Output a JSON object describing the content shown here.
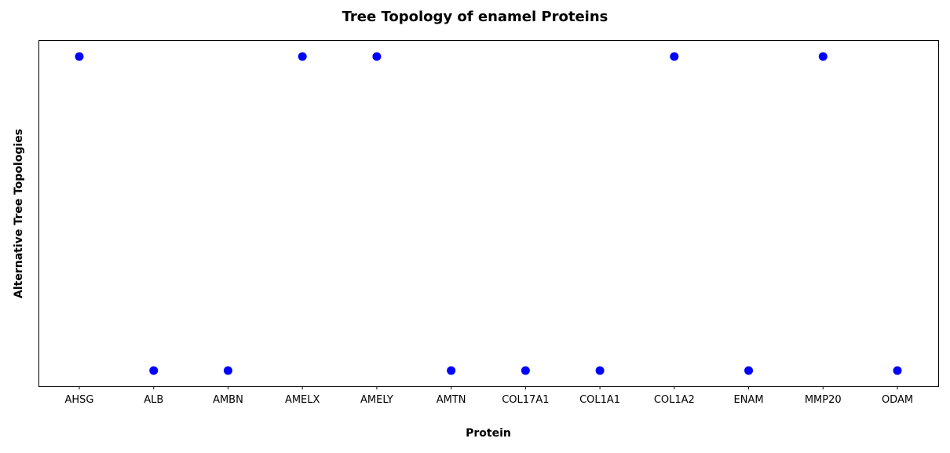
{
  "chart_data": {
    "type": "scatter",
    "title": "Tree Topology of enamel Proteins",
    "xlabel": "Protein",
    "ylabel": "Alternative Tree Topologies",
    "categories": [
      "AHSG",
      "ALB",
      "AMBN",
      "AMELX",
      "AMELY",
      "AMTN",
      "COL17A1",
      "COL1A1",
      "COL1A2",
      "ENAM",
      "MMP20",
      "ODAM"
    ],
    "series": [
      {
        "values": [
          1,
          0,
          0,
          1,
          1,
          0,
          0,
          0,
          1,
          0,
          1,
          0
        ]
      }
    ],
    "ylim": [
      -0.05,
      1.05
    ],
    "y_ticks_shown": false,
    "grid": false,
    "legend": "none",
    "marker_color": "#0000ff"
  }
}
